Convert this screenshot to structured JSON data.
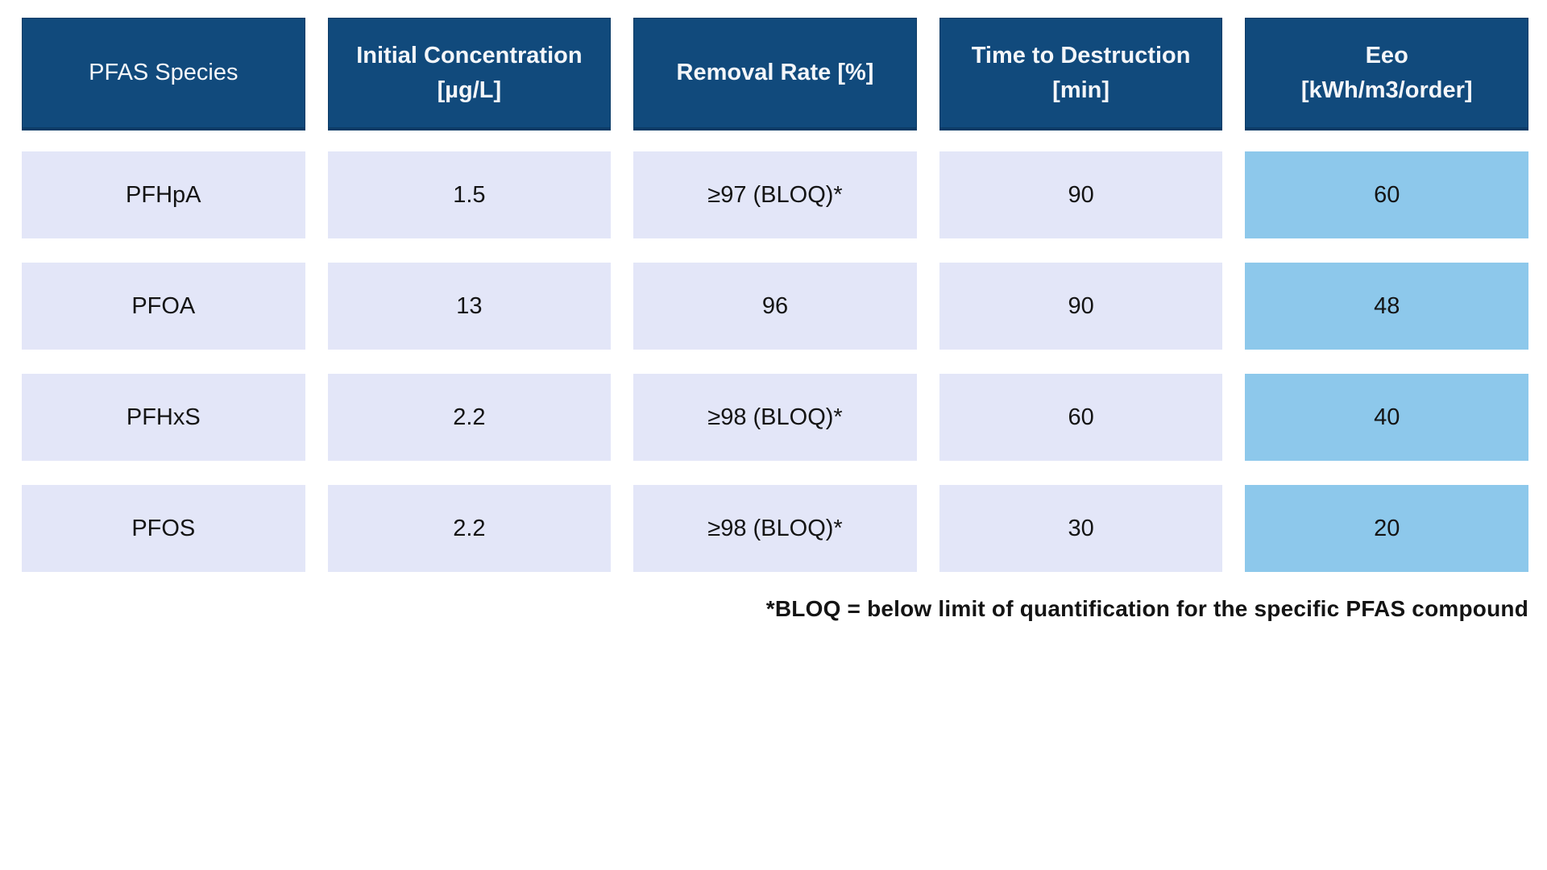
{
  "colors": {
    "page_bg": "#ffffff",
    "header_bg": "#114a7c",
    "header_border": "#0c3b66",
    "header_text": "#f4f6f9",
    "row_bg": "#e3e6f8",
    "eeo_bg": "#8dc8eb",
    "cell_text": "#141414"
  },
  "header": {
    "labels": [
      "PFAS Species",
      "Initial Concentration\n[µg/L]",
      "Removal Rate [%]",
      "Time to Destruction\n[min]",
      "Eeo\n[kWh/m3/order]"
    ]
  },
  "chart_data": {
    "type": "table",
    "title": "",
    "columns": [
      "PFAS Species",
      "Initial Concentration [µg/L]",
      "Removal Rate [%]",
      "Time to Destruction [min]",
      "Eeo [kWh/m3/order]"
    ],
    "rows": [
      [
        "PFHpA",
        "1.5",
        "≥97 (BLOQ)*",
        "90",
        "60"
      ],
      [
        "PFOA",
        "13",
        "96",
        "90",
        "48"
      ],
      [
        "PFHxS",
        "2.2",
        "≥98 (BLOQ)*",
        "60",
        "40"
      ],
      [
        "PFOS",
        "2.2",
        "≥98 (BLOQ)*",
        "30",
        "20"
      ]
    ],
    "footnote": "*BLOQ = below limit of quantification for the specific PFAS compound"
  }
}
